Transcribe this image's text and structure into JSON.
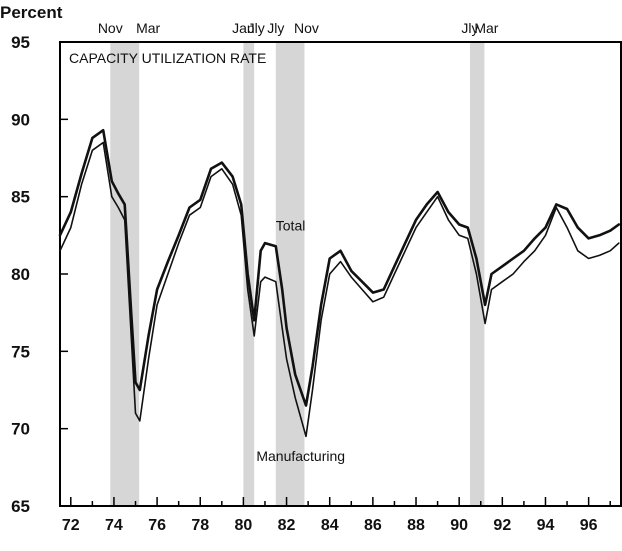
{
  "chart_data": {
    "type": "line",
    "title": "CAPACITY UTILIZATION RATE",
    "ylabel": "Percent",
    "xlabel": "",
    "xlim": [
      1971.5,
      1997.5
    ],
    "ylim": [
      65,
      95
    ],
    "grid": false,
    "yticks": [
      65,
      70,
      75,
      80,
      85,
      90,
      95
    ],
    "xticks": [
      {
        "value": 1972,
        "label": "72"
      },
      {
        "value": 1974,
        "label": "74"
      },
      {
        "value": 1976,
        "label": "76"
      },
      {
        "value": 1978,
        "label": "78"
      },
      {
        "value": 1980,
        "label": "80"
      },
      {
        "value": 1982,
        "label": "82"
      },
      {
        "value": 1984,
        "label": "84"
      },
      {
        "value": 1986,
        "label": "86"
      },
      {
        "value": 1988,
        "label": "88"
      },
      {
        "value": 1990,
        "label": "90"
      },
      {
        "value": 1992,
        "label": "92"
      },
      {
        "value": 1994,
        "label": "94"
      },
      {
        "value": 1996,
        "label": "96"
      }
    ],
    "recessions": [
      {
        "start": 1973.83,
        "end": 1975.17,
        "start_label": "Nov",
        "end_label": "Mar"
      },
      {
        "start": 1980.0,
        "end": 1980.5,
        "start_label": "Jan",
        "end_label": "Jly"
      },
      {
        "start": 1981.5,
        "end": 1982.83,
        "start_label": "Jly",
        "end_label": "Nov"
      },
      {
        "start": 1990.5,
        "end": 1991.17,
        "start_label": "Jly",
        "end_label": "Mar"
      }
    ],
    "series": [
      {
        "name": "Total",
        "x": [
          1971.5,
          1972.0,
          1972.5,
          1973.0,
          1973.5,
          1973.9,
          1974.2,
          1974.5,
          1974.8,
          1975.0,
          1975.2,
          1975.6,
          1976.0,
          1976.5,
          1977.0,
          1977.5,
          1978.0,
          1978.5,
          1979.0,
          1979.5,
          1979.9,
          1980.2,
          1980.5,
          1980.8,
          1981.0,
          1981.5,
          1981.8,
          1982.0,
          1982.4,
          1982.9,
          1983.2,
          1983.6,
          1984.0,
          1984.5,
          1985.0,
          1985.5,
          1986.0,
          1986.5,
          1987.0,
          1987.5,
          1988.0,
          1988.5,
          1989.0,
          1989.5,
          1990.0,
          1990.4,
          1990.8,
          1991.2,
          1991.5,
          1992.0,
          1992.5,
          1993.0,
          1993.5,
          1994.0,
          1994.5,
          1995.0,
          1995.5,
          1996.0,
          1996.5,
          1997.0,
          1997.4
        ],
        "values": [
          82.5,
          84.0,
          86.5,
          88.8,
          89.3,
          86.0,
          85.2,
          84.5,
          77.5,
          73.0,
          72.5,
          76.0,
          79.0,
          80.8,
          82.5,
          84.3,
          84.8,
          86.8,
          87.2,
          86.3,
          84.5,
          80.0,
          77.0,
          81.5,
          82.0,
          81.8,
          79.0,
          76.5,
          73.5,
          71.5,
          74.0,
          78.0,
          81.0,
          81.5,
          80.2,
          79.5,
          78.8,
          79.0,
          80.5,
          82.0,
          83.5,
          84.5,
          85.3,
          84.0,
          83.2,
          83.0,
          81.0,
          78.0,
          80.0,
          80.5,
          81.0,
          81.5,
          82.3,
          83.0,
          84.5,
          84.2,
          83.0,
          82.3,
          82.5,
          82.8,
          83.2
        ]
      },
      {
        "name": "Manufacturing",
        "x": [
          1971.5,
          1972.0,
          1972.5,
          1973.0,
          1973.5,
          1973.9,
          1974.2,
          1974.5,
          1974.8,
          1975.0,
          1975.2,
          1975.6,
          1976.0,
          1976.5,
          1977.0,
          1977.5,
          1978.0,
          1978.5,
          1979.0,
          1979.5,
          1979.9,
          1980.2,
          1980.5,
          1980.8,
          1981.0,
          1981.5,
          1981.8,
          1982.0,
          1982.4,
          1982.9,
          1983.2,
          1983.6,
          1984.0,
          1984.5,
          1985.0,
          1985.5,
          1986.0,
          1986.5,
          1987.0,
          1987.5,
          1988.0,
          1988.5,
          1989.0,
          1989.5,
          1990.0,
          1990.4,
          1990.8,
          1991.2,
          1991.5,
          1992.0,
          1992.5,
          1993.0,
          1993.5,
          1994.0,
          1994.5,
          1995.0,
          1995.5,
          1996.0,
          1996.5,
          1997.0,
          1997.4
        ],
        "values": [
          81.5,
          83.0,
          85.8,
          88.0,
          88.5,
          85.0,
          84.3,
          83.5,
          76.0,
          71.0,
          70.5,
          74.5,
          78.0,
          80.0,
          82.0,
          83.8,
          84.3,
          86.3,
          86.8,
          85.8,
          83.8,
          79.0,
          76.0,
          79.5,
          79.8,
          79.5,
          76.5,
          74.5,
          72.0,
          69.5,
          72.5,
          77.0,
          80.0,
          80.8,
          79.8,
          79.0,
          78.2,
          78.5,
          80.0,
          81.5,
          83.0,
          84.0,
          85.0,
          83.5,
          82.5,
          82.3,
          80.0,
          76.8,
          79.0,
          79.5,
          80.0,
          80.8,
          81.5,
          82.5,
          84.3,
          83.0,
          81.5,
          81.0,
          81.2,
          81.5,
          82.0
        ]
      }
    ],
    "annotations": [
      {
        "text": "Total",
        "x": 1981.5,
        "y": 82.8
      },
      {
        "text": "Manufacturing",
        "x": 1980.6,
        "y": 67.9
      }
    ]
  }
}
